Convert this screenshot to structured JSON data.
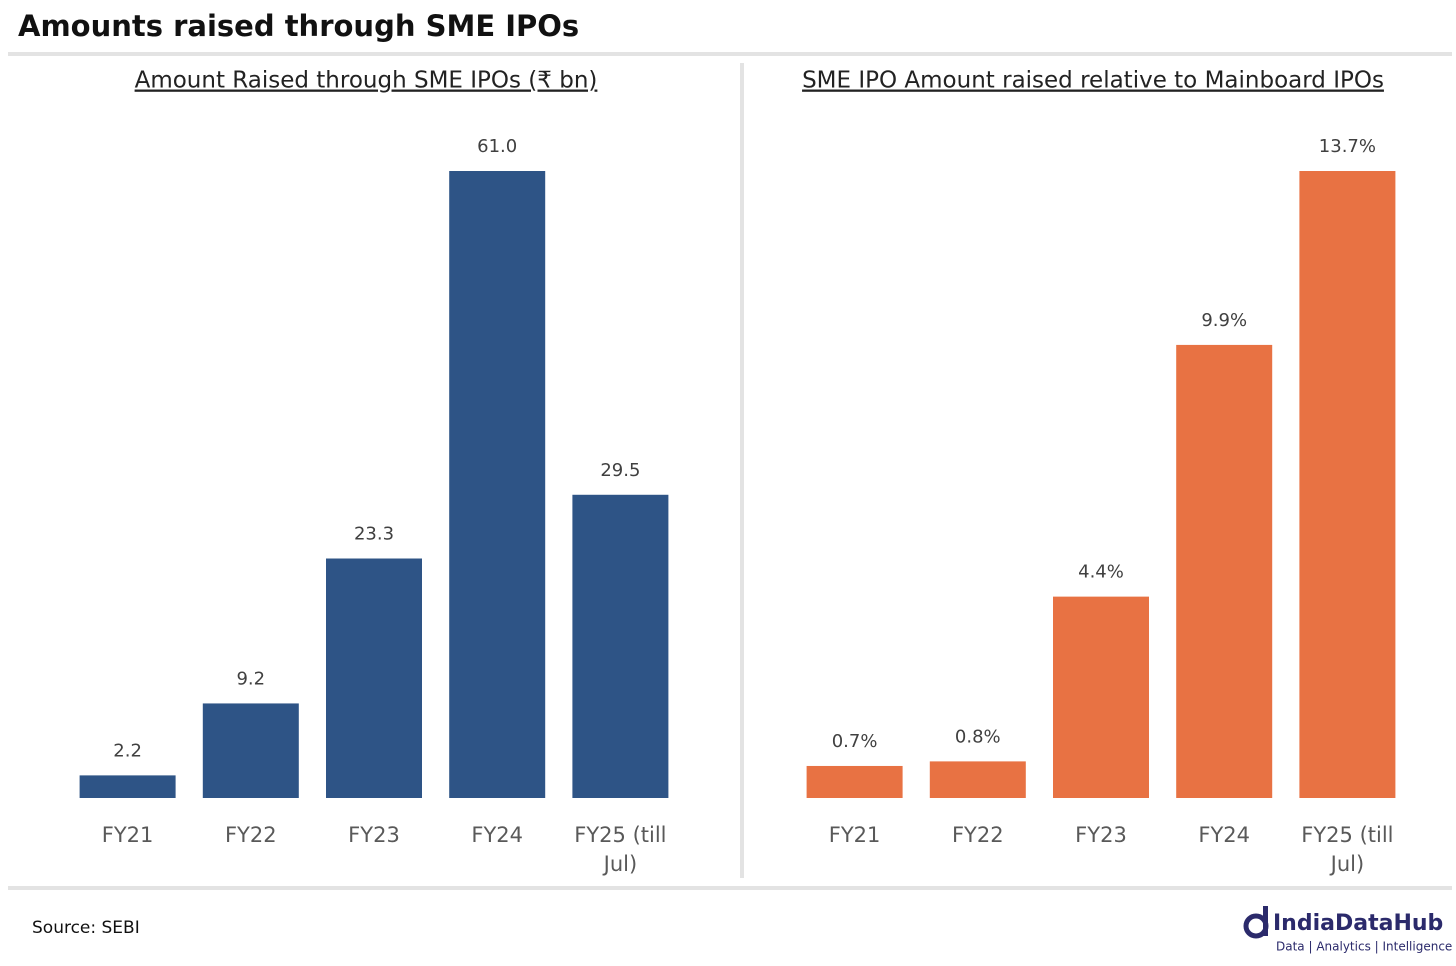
{
  "header": {
    "title": "Amounts raised through SME IPOs"
  },
  "chart_data": [
    {
      "type": "bar",
      "title": "Amount Raised through SME IPOs (₹ bn)",
      "categories": [
        "FY21",
        "FY22",
        "FY23",
        "FY24",
        "FY25 (till Jul)"
      ],
      "values": [
        2.2,
        9.2,
        23.3,
        61.0,
        29.5
      ],
      "value_labels": [
        "2.2",
        "9.2",
        "23.3",
        "61.0",
        "29.5"
      ],
      "color": "#2e5486"
    },
    {
      "type": "bar",
      "title": "SME IPO Amount raised relative to Mainboard IPOs",
      "categories": [
        "FY21",
        "FY22",
        "FY23",
        "FY24",
        "FY25 (till Jul)"
      ],
      "values": [
        0.7,
        0.8,
        4.4,
        9.9,
        13.7
      ],
      "value_labels": [
        "0.7%",
        "0.8%",
        "4.4%",
        "9.9%",
        "13.7%"
      ],
      "color": "#e87243"
    }
  ],
  "footer": {
    "source": "Source: SEBI",
    "brand": "IndiaDataHub",
    "tagline": "Data | Analytics | Intelligence"
  }
}
